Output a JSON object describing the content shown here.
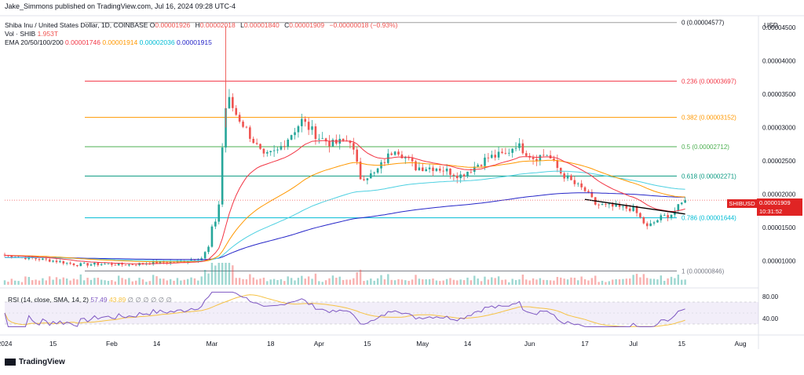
{
  "header": {
    "publisher": "Jake_Simmons published on TradingView.com, Jul 16, 2024 09:28 UTC-4",
    "symbol": "Shiba Inu / United States Dollar, 1D, COINBASE",
    "ohlc": [
      {
        "k": "O",
        "v": "0.00001926"
      },
      {
        "k": "H",
        "v": "0.00002018"
      },
      {
        "k": "L",
        "v": "0.00001840"
      },
      {
        "k": "C",
        "v": "0.00001909"
      },
      {
        "k": "",
        "v": "−0.00000018 (−0.93%)"
      }
    ],
    "vol_label": "Vol · SHIB",
    "vol_value": "1.953T",
    "ema_label": "EMA 20/50/100/200",
    "ema_values": [
      "0.00001746",
      "0.00001914",
      "0.00002036",
      "0.00001915"
    ],
    "rsi_label": "RSI (14, close, SMA, 14, 2)",
    "rsi_value": "57.49",
    "rsi_ma_value": "43.89",
    "rsi_na": "∅ ∅ ∅ ∅ ∅ ∅"
  },
  "price_scale_currency": "USD",
  "ticker_label": "SHIBUSD",
  "last_price": "0.00001909",
  "countdown": "10:31:52",
  "footer_brand": "TradingView",
  "colors": {
    "up": "#26a69a",
    "down": "#ef5350",
    "ema20": "#f23645",
    "ema50": "#ff9800",
    "ema100": "#4dd0e1",
    "ema200": "#2626c8",
    "rsi": "#7e57c2",
    "rsi_ma": "#f6c243",
    "trend": "#000000"
  },
  "chart_data": {
    "type": "candlestick",
    "y_range": [
      8.5e-06,
      4.55e-05
    ],
    "y_ticks": [
      "0.00004500",
      "0.00004000",
      "0.00003500",
      "0.00003000",
      "0.00002500",
      "0.00002000",
      "0.00001500",
      "0.00001000"
    ],
    "y_tick_values": [
      4.5e-05,
      4e-05,
      3.5e-05,
      3e-05,
      2.5e-05,
      2e-05,
      1.5e-05,
      1e-05
    ],
    "x_ticks": [
      {
        "label": "2024",
        "date": "2024-01-01"
      },
      {
        "label": "15",
        "date": "2024-01-15"
      },
      {
        "label": "Feb",
        "date": "2024-02-01"
      },
      {
        "label": "14",
        "date": "2024-02-14"
      },
      {
        "label": "Mar",
        "date": "2024-03-01"
      },
      {
        "label": "18",
        "date": "2024-03-18"
      },
      {
        "label": "Apr",
        "date": "2024-04-01"
      },
      {
        "label": "15",
        "date": "2024-04-15"
      },
      {
        "label": "May",
        "date": "2024-05-01"
      },
      {
        "label": "14",
        "date": "2024-05-14"
      },
      {
        "label": "Jun",
        "date": "2024-06-01"
      },
      {
        "label": "17",
        "date": "2024-06-17"
      },
      {
        "label": "Jul",
        "date": "2024-07-01"
      },
      {
        "label": "15",
        "date": "2024-07-15"
      },
      {
        "label": "Aug",
        "date": "2024-08-01"
      }
    ],
    "fib_levels": [
      {
        "label": "0 (0.00004577)",
        "value": 4.577e-05,
        "color": "#9e9e9e"
      },
      {
        "label": "0.236 (0.00003697)",
        "value": 3.697e-05,
        "color": "#f23645"
      },
      {
        "label": "0.382 (0.00003152)",
        "value": 3.152e-05,
        "color": "#ff9800"
      },
      {
        "label": "0.5 (0.00002712)",
        "value": 2.712e-05,
        "color": "#4caf50"
      },
      {
        "label": "0.618 (0.00002271)",
        "value": 2.271e-05,
        "color": "#089981"
      },
      {
        "label": "0.786 (0.00001644)",
        "value": 1.644e-05,
        "color": "#00bcd4"
      },
      {
        "label": "1 (0.00000846)",
        "value": 8.46e-06,
        "color": "#787b86"
      }
    ],
    "fib_start_date": "2024-03-05",
    "keypoints": [
      [
        "2024-01-01",
        1.08e-05
      ],
      [
        "2024-01-08",
        1.04e-05
      ],
      [
        "2024-01-15",
        1e-05
      ],
      [
        "2024-01-22",
        9.4e-06
      ],
      [
        "2024-01-29",
        9.5e-06
      ],
      [
        "2024-02-06",
        9.4e-06
      ],
      [
        "2024-02-13",
        9.7e-06
      ],
      [
        "2024-02-20",
        9.8e-06
      ],
      [
        "2024-02-27",
        1.04e-05
      ],
      [
        "2024-02-29",
        1.2e-05
      ],
      [
        "2024-03-01",
        1.48e-05
      ],
      [
        "2024-03-02",
        1.6e-05
      ],
      [
        "2024-03-03",
        1.85e-05
      ],
      [
        "2024-03-04",
        2.7e-05
      ],
      [
        "2024-03-05",
        3.3e-05
      ],
      [
        "2024-03-06",
        3.4e-05
      ],
      [
        "2024-03-08",
        3.2e-05
      ],
      [
        "2024-03-10",
        3.05e-05
      ],
      [
        "2024-03-13",
        2.8e-05
      ],
      [
        "2024-03-16",
        2.55e-05
      ],
      [
        "2024-03-20",
        2.65e-05
      ],
      [
        "2024-03-27",
        3.1e-05
      ],
      [
        "2024-04-01",
        2.85e-05
      ],
      [
        "2024-04-05",
        2.75e-05
      ],
      [
        "2024-04-10",
        2.82e-05
      ],
      [
        "2024-04-13",
        2.25e-05
      ],
      [
        "2024-04-17",
        2.3e-05
      ],
      [
        "2024-04-23",
        2.7e-05
      ],
      [
        "2024-04-29",
        2.4e-05
      ],
      [
        "2024-05-05",
        2.4e-05
      ],
      [
        "2024-05-12",
        2.28e-05
      ],
      [
        "2024-05-20",
        2.55e-05
      ],
      [
        "2024-05-25",
        2.6e-05
      ],
      [
        "2024-05-28",
        2.75e-05
      ],
      [
        "2024-06-02",
        2.55e-05
      ],
      [
        "2024-06-06",
        2.6e-05
      ],
      [
        "2024-06-10",
        2.32e-05
      ],
      [
        "2024-06-14",
        2.15e-05
      ],
      [
        "2024-06-17",
        2.05e-05
      ],
      [
        "2024-06-20",
        1.85e-05
      ],
      [
        "2024-06-26",
        1.8e-05
      ],
      [
        "2024-07-01",
        1.78e-05
      ],
      [
        "2024-07-05",
        1.5e-05
      ],
      [
        "2024-07-09",
        1.65e-05
      ],
      [
        "2024-07-12",
        1.7e-05
      ],
      [
        "2024-07-16",
        1.909e-05
      ]
    ],
    "rsi_ticks": [
      "80.00",
      "40.00"
    ],
    "rsi_tick_values": [
      80,
      40
    ],
    "rsi_band": [
      30,
      70
    ]
  }
}
